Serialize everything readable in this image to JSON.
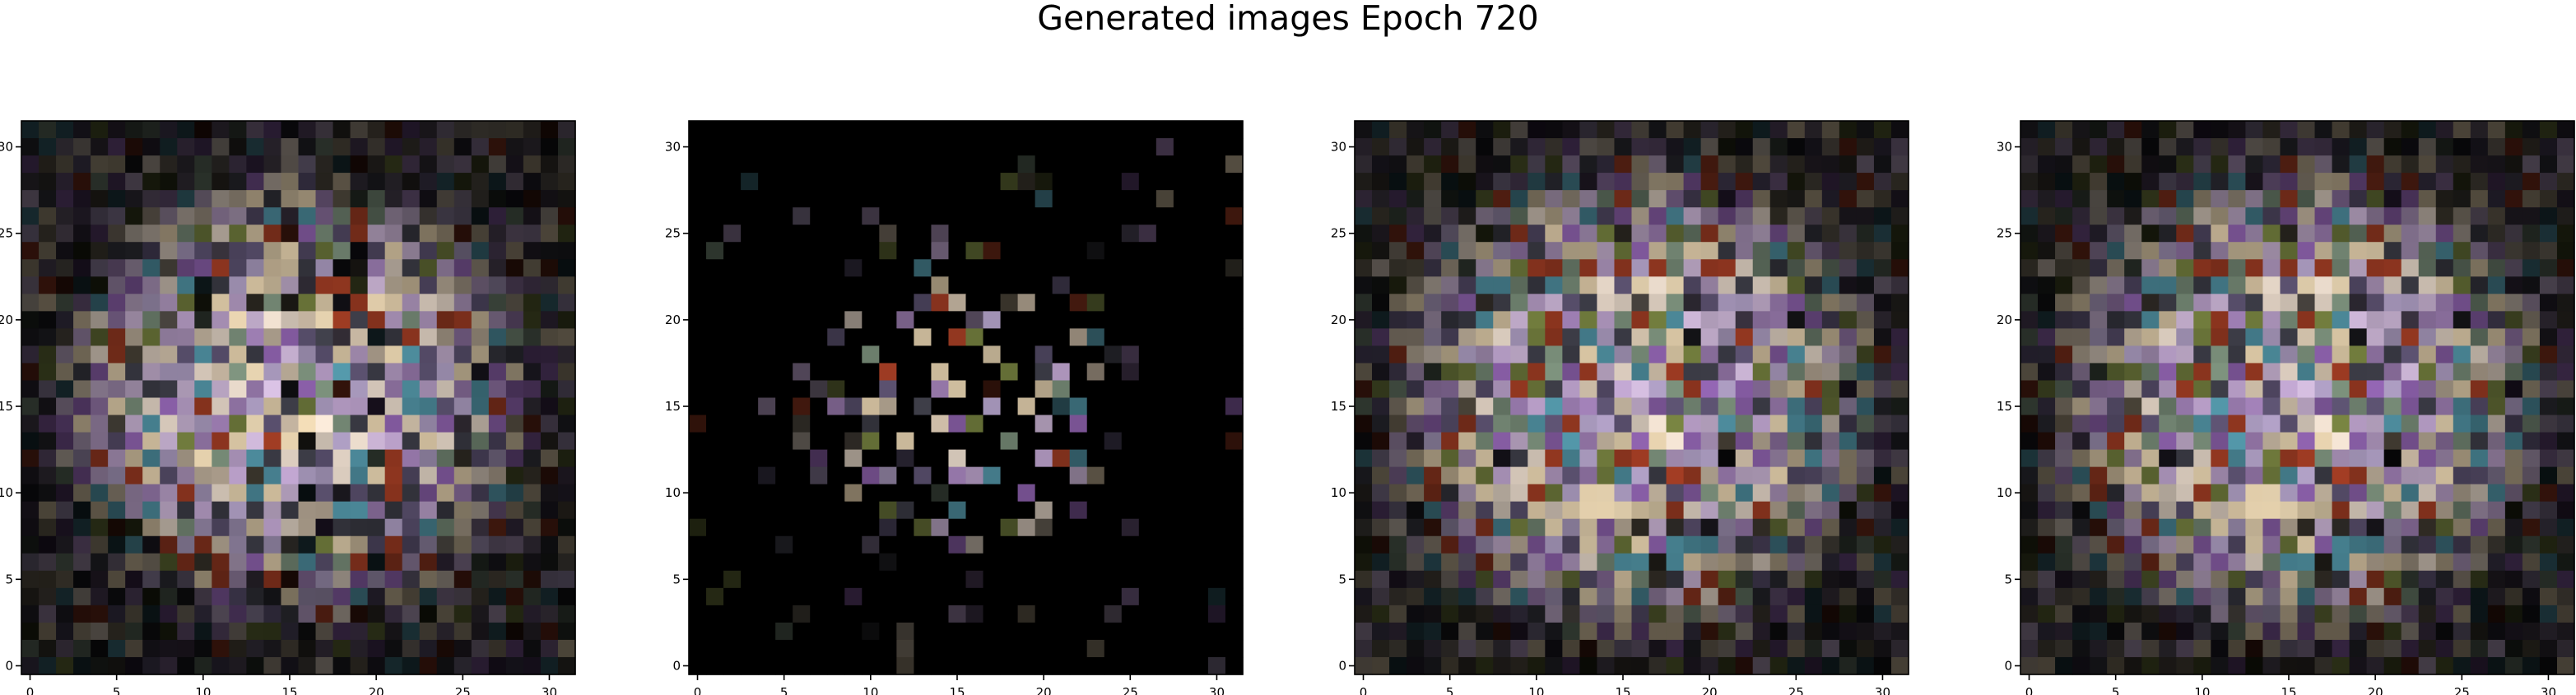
{
  "title": "Generated images Epoch 720",
  "colors": {
    "background": "#000000",
    "cream": "#d9c7a6",
    "lavender": "#b59cc4",
    "purple": "#8a5fa8",
    "teal": "#4f8fa0",
    "olive": "#6f7a3c",
    "rust": "#9a3a22"
  },
  "chart_data": [
    {
      "type": "heatmap",
      "grid_size": 32,
      "xlim": [
        -0.5,
        31.5
      ],
      "ylim": [
        31.5,
        -0.5
      ],
      "xticks": [
        0,
        5,
        10,
        15,
        20,
        25,
        30
      ],
      "yticks": [
        0,
        5,
        10,
        15,
        20,
        25,
        30
      ],
      "content": "pixel image",
      "pattern_seed": 11,
      "pattern_radius": 14.5,
      "pattern_density": 0.92
    },
    {
      "type": "heatmap",
      "grid_size": 32,
      "xlim": [
        -0.5,
        31.5
      ],
      "ylim": [
        31.5,
        -0.5
      ],
      "xticks": [
        0,
        5,
        10,
        15,
        20,
        25,
        30
      ],
      "yticks": [
        0,
        5,
        10,
        15,
        20,
        25,
        30
      ],
      "content": "pixel image",
      "pattern_seed": 29,
      "pattern_radius": 9.5,
      "pattern_density": 0.35
    },
    {
      "type": "heatmap",
      "grid_size": 32,
      "xlim": [
        -0.5,
        31.5
      ],
      "ylim": [
        31.5,
        -0.5
      ],
      "xticks": [
        0,
        5,
        10,
        15,
        20,
        25,
        30
      ],
      "yticks": [
        0,
        5,
        10,
        15,
        20,
        25,
        30
      ],
      "content": "pixel image",
      "pattern_seed": 47,
      "pattern_radius": 15.5,
      "pattern_density": 0.95
    },
    {
      "type": "heatmap",
      "grid_size": 32,
      "xlim": [
        -0.5,
        31.5
      ],
      "ylim": [
        31.5,
        -0.5
      ],
      "xticks": [
        0,
        5,
        10,
        15,
        20,
        25,
        30
      ],
      "yticks": [
        0,
        5,
        10,
        15,
        20,
        25,
        30
      ],
      "content": "pixel image",
      "pattern_seed": 47,
      "pattern_radius": 15.5,
      "pattern_density": 0.95
    }
  ]
}
